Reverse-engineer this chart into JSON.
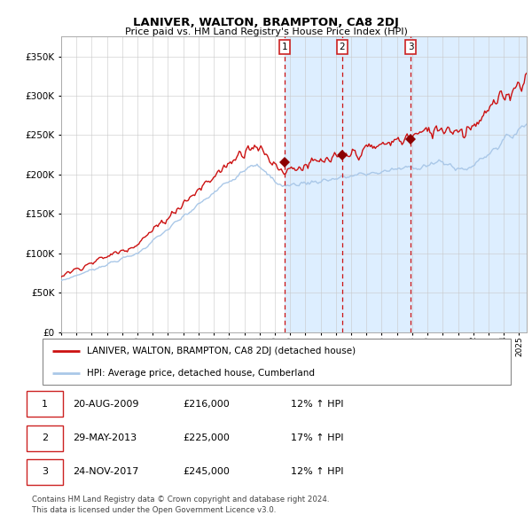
{
  "title": "LANIVER, WALTON, BRAMPTON, CA8 2DJ",
  "subtitle": "Price paid vs. HM Land Registry's House Price Index (HPI)",
  "ytick_values": [
    0,
    50000,
    100000,
    150000,
    200000,
    250000,
    300000,
    350000
  ],
  "ylim": [
    0,
    375000
  ],
  "hpi_color": "#aac8e8",
  "property_color": "#cc1111",
  "marker_color": "#8b0000",
  "vline_color": "#cc1111",
  "shade_color": "#ddeeff",
  "bg_color": "#f0f4f8",
  "grid_color": "#c8c8c8",
  "sale_dates": [
    2009.638,
    2013.413,
    2017.899
  ],
  "sale_prices": [
    216000,
    225000,
    245000
  ],
  "sale_labels": [
    "1",
    "2",
    "3"
  ],
  "legend_property": "LANIVER, WALTON, BRAMPTON, CA8 2DJ (detached house)",
  "legend_hpi": "HPI: Average price, detached house, Cumberland",
  "table_rows": [
    [
      "1",
      "20-AUG-2009",
      "£216,000",
      "12% ↑ HPI"
    ],
    [
      "2",
      "29-MAY-2013",
      "£225,000",
      "17% ↑ HPI"
    ],
    [
      "3",
      "24-NOV-2017",
      "£245,000",
      "12% ↑ HPI"
    ]
  ],
  "footnote1": "Contains HM Land Registry data © Crown copyright and database right 2024.",
  "footnote2": "This data is licensed under the Open Government Licence v3.0.",
  "xstart": 1995.0,
  "xend": 2025.5
}
